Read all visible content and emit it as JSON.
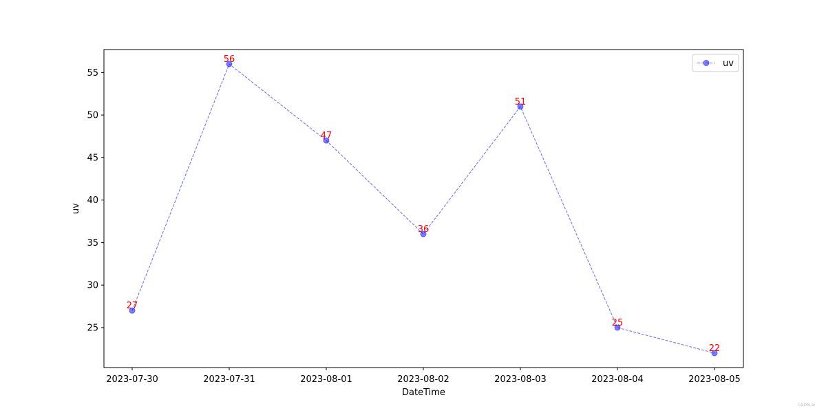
{
  "chart_data": {
    "type": "line",
    "x": [
      "2023-07-30",
      "2023-07-31",
      "2023-08-01",
      "2023-08-02",
      "2023-08-03",
      "2023-08-04",
      "2023-08-05"
    ],
    "series": [
      {
        "name": "uv",
        "values": [
          27,
          56,
          47,
          36,
          51,
          25,
          22
        ],
        "color": "#0000ff",
        "label_color": "#ff0000"
      }
    ],
    "xlabel": "DateTime",
    "ylabel": "uv",
    "ylim": [
      20.3,
      57.7
    ],
    "yticks": [
      25,
      30,
      35,
      40,
      45,
      50,
      55
    ],
    "grid": false,
    "legend_position": "top-right",
    "line_style": "dashed",
    "marker": "circle"
  },
  "watermark": "CSDN-ai"
}
